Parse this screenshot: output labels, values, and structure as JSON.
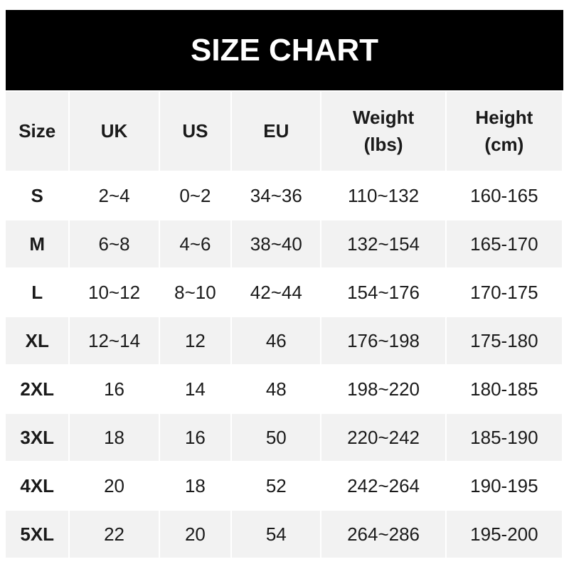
{
  "title": "SIZE CHART",
  "columns": [
    "Size",
    "UK",
    "US",
    "EU",
    "Weight\n(lbs)",
    "Height\n(cm)"
  ],
  "header": {
    "c0": "Size",
    "c1": "UK",
    "c2": "US",
    "c3": "EU",
    "c4a": "Weight",
    "c4b": "(lbs)",
    "c5a": "Height",
    "c5b": "(cm)"
  },
  "rows": [
    [
      "S",
      "2~4",
      "0~2",
      "34~36",
      "110~132",
      "160-165"
    ],
    [
      "M",
      "6~8",
      "4~6",
      "38~40",
      "132~154",
      "165-170"
    ],
    [
      "L",
      "10~12",
      "8~10",
      "42~44",
      "154~176",
      "170-175"
    ],
    [
      "XL",
      "12~14",
      "12",
      "46",
      "176~198",
      "175-180"
    ],
    [
      "2XL",
      "16",
      "14",
      "48",
      "198~220",
      "180-185"
    ],
    [
      "3XL",
      "18",
      "16",
      "50",
      "220~242",
      "185-190"
    ],
    [
      "4XL",
      "20",
      "18",
      "52",
      "242~264",
      "190-195"
    ],
    [
      "5XL",
      "22",
      "20",
      "54",
      "264~286",
      "195-200"
    ]
  ],
  "colors": {
    "title_bg": "#000000",
    "header_bg": "#f2f2f2",
    "stripe": "#f2f2f2"
  }
}
